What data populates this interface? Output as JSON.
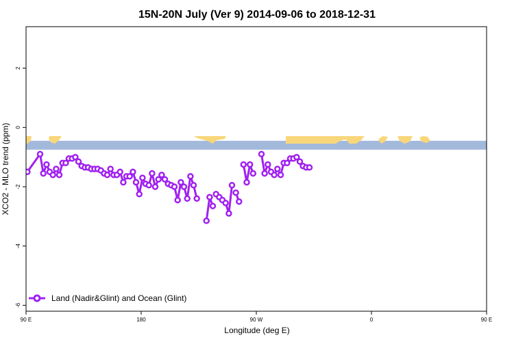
{
  "colors": {
    "series": "#a020f0",
    "ocean": "#a3b9dc",
    "land": "#f8d77a",
    "frame": "#000000"
  },
  "chart_data": {
    "type": "line",
    "title": "15N-20N July (Ver 9)   2014-09-06 to 2018-12-31",
    "xlabel": "Longitude (deg E)",
    "ylabel": "XCO2 - MLO trend (ppm)",
    "xlim": [
      90,
      450
    ],
    "ylim": [
      -6.2,
      3.4
    ],
    "x_ticks": [
      {
        "value": 90,
        "label": "90 E"
      },
      {
        "value": 180,
        "label": "180"
      },
      {
        "value": 270,
        "label": "90 W"
      },
      {
        "value": 360,
        "label": "0"
      },
      {
        "value": 450,
        "label": "90 E"
      },
      {
        "value": 540,
        "label": "180"
      }
    ],
    "y_ticks": [
      {
        "value": 2,
        "label": "2"
      },
      {
        "value": 0,
        "label": "0"
      },
      {
        "value": -2,
        "label": "-2"
      },
      {
        "value": -4,
        "label": "-4"
      },
      {
        "value": -6,
        "label": "-6"
      }
    ],
    "legend": {
      "position": "bottom-left",
      "entries": [
        "Land (Nadir&Glint) and Ocean (Glint)"
      ]
    },
    "map_strip": {
      "y_top": -0.45,
      "y_bottom": -0.75
    },
    "series": [
      {
        "name": "Land (Nadir&Glint) and Ocean (Glint)",
        "segments": [
          [
            [
              91,
              -1.5
            ],
            [
              101,
              -0.9
            ],
            [
              103.5,
              -1.55
            ],
            [
              106,
              -1.25
            ],
            [
              108.5,
              -1.5
            ],
            [
              111,
              -1.6
            ],
            [
              113.5,
              -1.4
            ],
            [
              116,
              -1.6
            ],
            [
              118.5,
              -1.2
            ],
            [
              121,
              -1.2
            ],
            [
              123.5,
              -1.05
            ],
            [
              126,
              -1.05
            ],
            [
              128.5,
              -1.0
            ],
            [
              131,
              -1.15
            ],
            [
              133.5,
              -1.3
            ],
            [
              136,
              -1.35
            ],
            [
              138.5,
              -1.35
            ],
            [
              141,
              -1.4
            ],
            [
              143.5,
              -1.4
            ],
            [
              146,
              -1.4
            ],
            [
              148.5,
              -1.45
            ],
            [
              151,
              -1.55
            ],
            [
              153.5,
              -1.6
            ],
            [
              156,
              -1.4
            ],
            [
              158.5,
              -1.6
            ],
            [
              161,
              -1.6
            ],
            [
              163.5,
              -1.5
            ],
            [
              166,
              -1.85
            ],
            [
              168.5,
              -1.65
            ],
            [
              171,
              -1.65
            ],
            [
              173.5,
              -1.5
            ],
            [
              176,
              -1.85
            ],
            [
              178.5,
              -2.25
            ],
            [
              181,
              -1.7
            ],
            [
              183.5,
              -1.9
            ],
            [
              186,
              -1.95
            ],
            [
              188.5,
              -1.55
            ],
            [
              191,
              -2.0
            ],
            [
              193.5,
              -1.75
            ],
            [
              196,
              -1.6
            ],
            [
              198.5,
              -1.75
            ],
            [
              201,
              -1.9
            ],
            [
              203.5,
              -1.95
            ],
            [
              206,
              -2.0
            ],
            [
              208.5,
              -2.45
            ],
            [
              211,
              -1.85
            ],
            [
              213.5,
              -2.0
            ],
            [
              216,
              -2.4
            ],
            [
              218.5,
              -1.65
            ],
            [
              221,
              -1.95
            ],
            [
              223.5,
              -2.4
            ]
          ],
          [
            [
              231,
              -3.15
            ],
            [
              233.5,
              -2.35
            ],
            [
              236,
              -2.65
            ]
          ],
          [
            [
              238.5,
              -2.25
            ],
            [
              241,
              -2.35
            ],
            [
              243.5,
              -2.45
            ],
            [
              246,
              -2.55
            ],
            [
              248.5,
              -2.9
            ],
            [
              251,
              -1.95
            ]
          ],
          [
            [
              254,
              -2.2
            ],
            [
              256.5,
              -2.5
            ]
          ],
          [
            [
              260,
              -1.25
            ],
            [
              262.5,
              -1.85
            ],
            [
              265,
              -1.25
            ],
            [
              267.5,
              -1.55
            ]
          ],
          [
            [
              274,
              -0.9
            ],
            [
              276.5,
              -1.55
            ],
            [
              279,
              -1.25
            ],
            [
              281.5,
              -1.5
            ],
            [
              284,
              -1.6
            ],
            [
              286.5,
              -1.4
            ],
            [
              289,
              -1.6
            ],
            [
              291.5,
              -1.2
            ],
            [
              294,
              -1.2
            ],
            [
              296.5,
              -1.05
            ],
            [
              299,
              -1.05
            ],
            [
              301.5,
              -1.0
            ],
            [
              304,
              -1.15
            ],
            [
              306.5,
              -1.3
            ],
            [
              309,
              -1.35
            ],
            [
              311.5,
              -1.35
            ]
          ]
        ]
      }
    ]
  }
}
